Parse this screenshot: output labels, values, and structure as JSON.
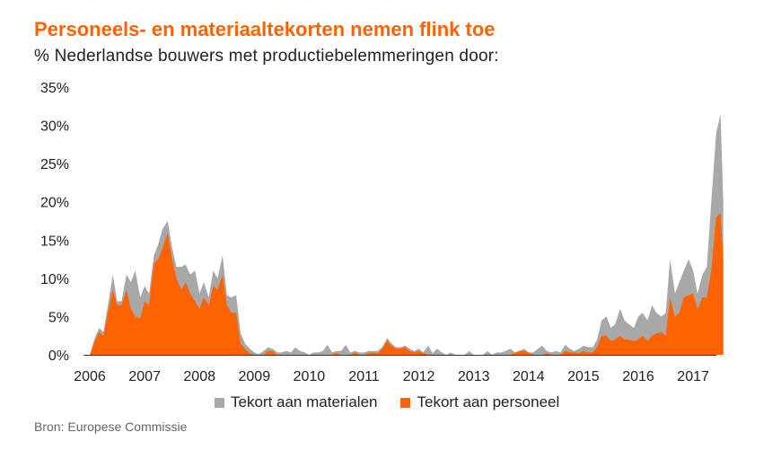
{
  "chart_data": {
    "type": "area",
    "stacked": true,
    "title": "Personeels- en materiaaltekorten nemen flink toe",
    "subtitle": "% Nederlandse bouwers met productiebelemmeringen door:",
    "source": "Bron: Europese Commissie",
    "x_ticks": [
      "2006",
      "2007",
      "2008",
      "2009",
      "2010",
      "2011",
      "2012",
      "2013",
      "2014",
      "2015",
      "2016",
      "2017"
    ],
    "y_ticks": [
      "0%",
      "5%",
      "10%",
      "15%",
      "20%",
      "25%",
      "30%",
      "35%"
    ],
    "ylim": [
      0,
      35
    ],
    "legend_position": "bottom",
    "series": [
      {
        "name": "Tekort aan personeel",
        "color": "#ff6200",
        "points": [
          [
            2006.0,
            0
          ],
          [
            2006.08,
            1.5
          ],
          [
            2006.17,
            3.0
          ],
          [
            2006.25,
            2.5
          ],
          [
            2006.33,
            5.5
          ],
          [
            2006.42,
            8.5
          ],
          [
            2006.5,
            6.5
          ],
          [
            2006.58,
            6.5
          ],
          [
            2006.67,
            8.5
          ],
          [
            2006.75,
            6.0
          ],
          [
            2006.83,
            5.0
          ],
          [
            2006.92,
            4.8
          ],
          [
            2007.0,
            7.0
          ],
          [
            2007.08,
            6.5
          ],
          [
            2007.17,
            12.0
          ],
          [
            2007.25,
            12.5
          ],
          [
            2007.33,
            14.0
          ],
          [
            2007.42,
            16.0
          ],
          [
            2007.5,
            12.5
          ],
          [
            2007.58,
            10.0
          ],
          [
            2007.67,
            8.5
          ],
          [
            2007.75,
            9.5
          ],
          [
            2007.83,
            8.0
          ],
          [
            2007.92,
            7.0
          ],
          [
            2008.0,
            6.0
          ],
          [
            2008.08,
            7.5
          ],
          [
            2008.17,
            6.5
          ],
          [
            2008.25,
            9.0
          ],
          [
            2008.33,
            8.5
          ],
          [
            2008.42,
            10.5
          ],
          [
            2008.5,
            6.5
          ],
          [
            2008.58,
            5.5
          ],
          [
            2008.67,
            5.5
          ],
          [
            2008.75,
            1.5
          ],
          [
            2008.83,
            0.8
          ],
          [
            2008.92,
            0.2
          ],
          [
            2009.0,
            0
          ],
          [
            2009.17,
            0
          ],
          [
            2009.25,
            0.5
          ],
          [
            2009.33,
            0.5
          ],
          [
            2009.42,
            0
          ],
          [
            2010.42,
            0
          ],
          [
            2010.5,
            0.2
          ],
          [
            2010.58,
            0
          ],
          [
            2010.75,
            0
          ],
          [
            2010.83,
            0.3
          ],
          [
            2010.92,
            0
          ],
          [
            2011.0,
            0
          ],
          [
            2011.08,
            0.2
          ],
          [
            2011.17,
            0.3
          ],
          [
            2011.25,
            0.2
          ],
          [
            2011.33,
            0.8
          ],
          [
            2011.42,
            1.8
          ],
          [
            2011.5,
            1.2
          ],
          [
            2011.58,
            0.8
          ],
          [
            2011.67,
            0.8
          ],
          [
            2011.75,
            1.0
          ],
          [
            2011.83,
            0.5
          ],
          [
            2011.92,
            0.3
          ],
          [
            2012.0,
            0.5
          ],
          [
            2012.08,
            0.2
          ],
          [
            2012.17,
            0
          ],
          [
            2013.67,
            0
          ],
          [
            2013.75,
            0.2
          ],
          [
            2013.83,
            0.5
          ],
          [
            2013.92,
            0.5
          ],
          [
            2014.0,
            0.3
          ],
          [
            2014.08,
            0
          ],
          [
            2014.25,
            0
          ],
          [
            2014.33,
            0.2
          ],
          [
            2014.42,
            0
          ],
          [
            2014.58,
            0
          ],
          [
            2014.67,
            0.5
          ],
          [
            2014.75,
            0.3
          ],
          [
            2014.83,
            0.3
          ],
          [
            2014.92,
            0.2
          ],
          [
            2015.0,
            0.5
          ],
          [
            2015.08,
            0.3
          ],
          [
            2015.17,
            0.3
          ],
          [
            2015.25,
            1.0
          ],
          [
            2015.33,
            2.5
          ],
          [
            2015.42,
            2.5
          ],
          [
            2015.5,
            1.8
          ],
          [
            2015.58,
            2.0
          ],
          [
            2015.67,
            2.5
          ],
          [
            2015.75,
            2.0
          ],
          [
            2015.83,
            2.0
          ],
          [
            2015.92,
            1.8
          ],
          [
            2016.0,
            2.0
          ],
          [
            2016.08,
            2.5
          ],
          [
            2016.17,
            1.8
          ],
          [
            2016.25,
            2.5
          ],
          [
            2016.33,
            2.8
          ],
          [
            2016.42,
            3.0
          ],
          [
            2016.5,
            2.5
          ],
          [
            2016.58,
            7.5
          ],
          [
            2016.67,
            5.0
          ],
          [
            2016.75,
            5.5
          ],
          [
            2016.83,
            7.5
          ],
          [
            2016.92,
            7.8
          ],
          [
            2017.0,
            8.0
          ],
          [
            2017.08,
            6.0
          ],
          [
            2017.17,
            7.5
          ],
          [
            2017.25,
            7.5
          ],
          [
            2017.33,
            11.0
          ],
          [
            2017.42,
            18.0
          ],
          [
            2017.5,
            18.5
          ],
          [
            2017.55,
            12.5
          ],
          [
            2017.55,
            0
          ]
        ]
      },
      {
        "name": "Tekort aan materialen",
        "color": "#a8a8a8",
        "points": [
          [
            2006.0,
            0
          ],
          [
            2006.08,
            2.0
          ],
          [
            2006.17,
            3.5
          ],
          [
            2006.25,
            3.0
          ],
          [
            2006.33,
            6.5
          ],
          [
            2006.42,
            10.5
          ],
          [
            2006.5,
            7.0
          ],
          [
            2006.58,
            7.0
          ],
          [
            2006.67,
            10.5
          ],
          [
            2006.75,
            9.5
          ],
          [
            2006.83,
            11.0
          ],
          [
            2006.92,
            7.5
          ],
          [
            2007.0,
            9.0
          ],
          [
            2007.08,
            8.0
          ],
          [
            2007.17,
            13.0
          ],
          [
            2007.25,
            14.5
          ],
          [
            2007.33,
            16.5
          ],
          [
            2007.42,
            17.5
          ],
          [
            2007.5,
            14.0
          ],
          [
            2007.58,
            11.5
          ],
          [
            2007.67,
            11.5
          ],
          [
            2007.75,
            11.8
          ],
          [
            2007.83,
            10.5
          ],
          [
            2007.92,
            11.0
          ],
          [
            2008.0,
            8.0
          ],
          [
            2008.08,
            9.5
          ],
          [
            2008.17,
            7.5
          ],
          [
            2008.25,
            11.0
          ],
          [
            2008.33,
            10.0
          ],
          [
            2008.42,
            13.0
          ],
          [
            2008.5,
            7.8
          ],
          [
            2008.58,
            7.5
          ],
          [
            2008.67,
            7.8
          ],
          [
            2008.75,
            2.8
          ],
          [
            2008.83,
            1.5
          ],
          [
            2008.92,
            0.8
          ],
          [
            2009.0,
            0.3
          ],
          [
            2009.08,
            0.1
          ],
          [
            2009.17,
            0.5
          ],
          [
            2009.25,
            1.0
          ],
          [
            2009.33,
            0.8
          ],
          [
            2009.42,
            0.3
          ],
          [
            2009.5,
            0.3
          ],
          [
            2009.58,
            0.5
          ],
          [
            2009.67,
            0.3
          ],
          [
            2009.75,
            1.0
          ],
          [
            2009.83,
            0.5
          ],
          [
            2009.92,
            0.3
          ],
          [
            2010.0,
            0
          ],
          [
            2010.08,
            0.3
          ],
          [
            2010.17,
            0.3
          ],
          [
            2010.25,
            0.5
          ],
          [
            2010.33,
            1.3
          ],
          [
            2010.42,
            0.3
          ],
          [
            2010.5,
            0.5
          ],
          [
            2010.58,
            0.5
          ],
          [
            2010.67,
            1.3
          ],
          [
            2010.75,
            0.3
          ],
          [
            2010.83,
            0.5
          ],
          [
            2010.92,
            0.3
          ],
          [
            2011.0,
            0.3
          ],
          [
            2011.08,
            0.5
          ],
          [
            2011.17,
            0.5
          ],
          [
            2011.25,
            0.5
          ],
          [
            2011.33,
            1.0
          ],
          [
            2011.42,
            2.2
          ],
          [
            2011.5,
            1.5
          ],
          [
            2011.58,
            1.0
          ],
          [
            2011.67,
            1.0
          ],
          [
            2011.75,
            1.2
          ],
          [
            2011.83,
            0.8
          ],
          [
            2011.92,
            0.5
          ],
          [
            2012.0,
            0.8
          ],
          [
            2012.08,
            0.3
          ],
          [
            2012.17,
            1.2
          ],
          [
            2012.25,
            0.2
          ],
          [
            2012.33,
            0.8
          ],
          [
            2012.42,
            0.3
          ],
          [
            2012.5,
            0
          ],
          [
            2012.58,
            0.3
          ],
          [
            2012.67,
            0
          ],
          [
            2012.83,
            0
          ],
          [
            2012.92,
            0.5
          ],
          [
            2013.0,
            0
          ],
          [
            2013.17,
            0
          ],
          [
            2013.25,
            0.5
          ],
          [
            2013.33,
            0
          ],
          [
            2013.42,
            0.3
          ],
          [
            2013.5,
            0.3
          ],
          [
            2013.58,
            0.5
          ],
          [
            2013.67,
            0.8
          ],
          [
            2013.75,
            0.3
          ],
          [
            2013.83,
            0.5
          ],
          [
            2013.92,
            0.8
          ],
          [
            2014.0,
            0.3
          ],
          [
            2014.08,
            0.3
          ],
          [
            2014.17,
            0.8
          ],
          [
            2014.25,
            1.2
          ],
          [
            2014.33,
            0.5
          ],
          [
            2014.42,
            0.3
          ],
          [
            2014.5,
            0.5
          ],
          [
            2014.58,
            0.3
          ],
          [
            2014.67,
            1.3
          ],
          [
            2014.75,
            0.8
          ],
          [
            2014.83,
            0.5
          ],
          [
            2014.92,
            0.8
          ],
          [
            2015.0,
            1.2
          ],
          [
            2015.08,
            1.0
          ],
          [
            2015.17,
            1.0
          ],
          [
            2015.25,
            2.0
          ],
          [
            2015.33,
            4.5
          ],
          [
            2015.42,
            5.0
          ],
          [
            2015.5,
            3.5
          ],
          [
            2015.58,
            4.0
          ],
          [
            2015.67,
            6.0
          ],
          [
            2015.75,
            4.5
          ],
          [
            2015.83,
            4.0
          ],
          [
            2015.92,
            3.5
          ],
          [
            2016.0,
            5.0
          ],
          [
            2016.08,
            5.5
          ],
          [
            2016.17,
            4.5
          ],
          [
            2016.25,
            6.5
          ],
          [
            2016.33,
            5.5
          ],
          [
            2016.42,
            5.0
          ],
          [
            2016.5,
            5.5
          ],
          [
            2016.58,
            12.5
          ],
          [
            2016.67,
            8.0
          ],
          [
            2016.75,
            9.5
          ],
          [
            2016.83,
            11.0
          ],
          [
            2016.92,
            12.5
          ],
          [
            2017.0,
            11.0
          ],
          [
            2017.08,
            8.0
          ],
          [
            2017.17,
            10.5
          ],
          [
            2017.25,
            11.5
          ],
          [
            2017.33,
            20.0
          ],
          [
            2017.42,
            29.0
          ],
          [
            2017.5,
            31.5
          ],
          [
            2017.55,
            20.0
          ],
          [
            2017.55,
            0
          ]
        ]
      }
    ]
  }
}
